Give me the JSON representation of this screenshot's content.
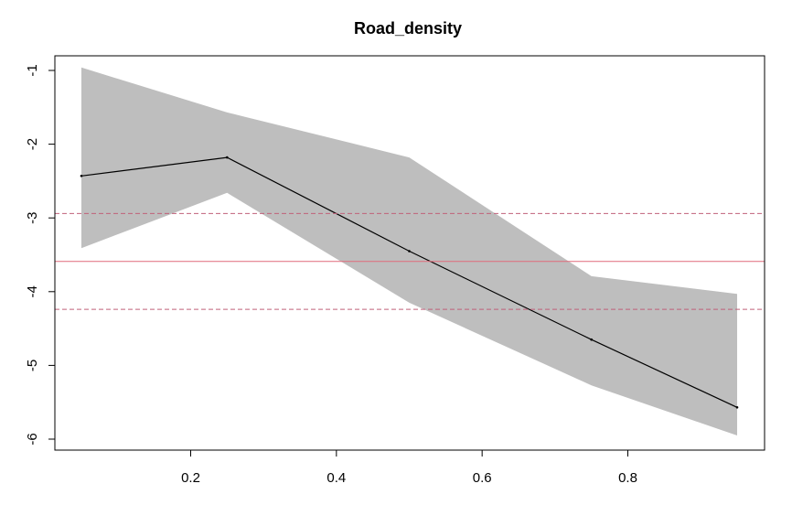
{
  "chart_data": {
    "type": "line",
    "title": "Road_density",
    "xlabel": "",
    "ylabel": "",
    "xlim": [
      0.05,
      0.95
    ],
    "ylim": [
      -6,
      -1
    ],
    "x_ticks": [
      0.2,
      0.4,
      0.6,
      0.8
    ],
    "y_ticks": [
      -1,
      -2,
      -3,
      -4,
      -5,
      -6
    ],
    "grid": false,
    "series": [
      {
        "x": [
          0.05,
          0.25,
          0.5,
          0.75,
          0.95
        ],
        "y": [
          -2.43,
          -2.18,
          -3.45,
          -4.65,
          -5.57
        ],
        "lower": [
          -3.41,
          -2.66,
          -4.15,
          -5.27,
          -5.95
        ],
        "upper": [
          -0.96,
          -1.57,
          -2.18,
          -3.79,
          -4.03
        ]
      }
    ],
    "reference_lines": [
      {
        "y": -3.59,
        "style": "solid"
      },
      {
        "y": -2.94,
        "style": "dashed"
      },
      {
        "y": -4.24,
        "style": "dashed"
      }
    ],
    "colors": {
      "band": "#bebebe",
      "line": "#000000",
      "reference": "#e06a7a",
      "reference_dashed": "#c0607a"
    }
  }
}
